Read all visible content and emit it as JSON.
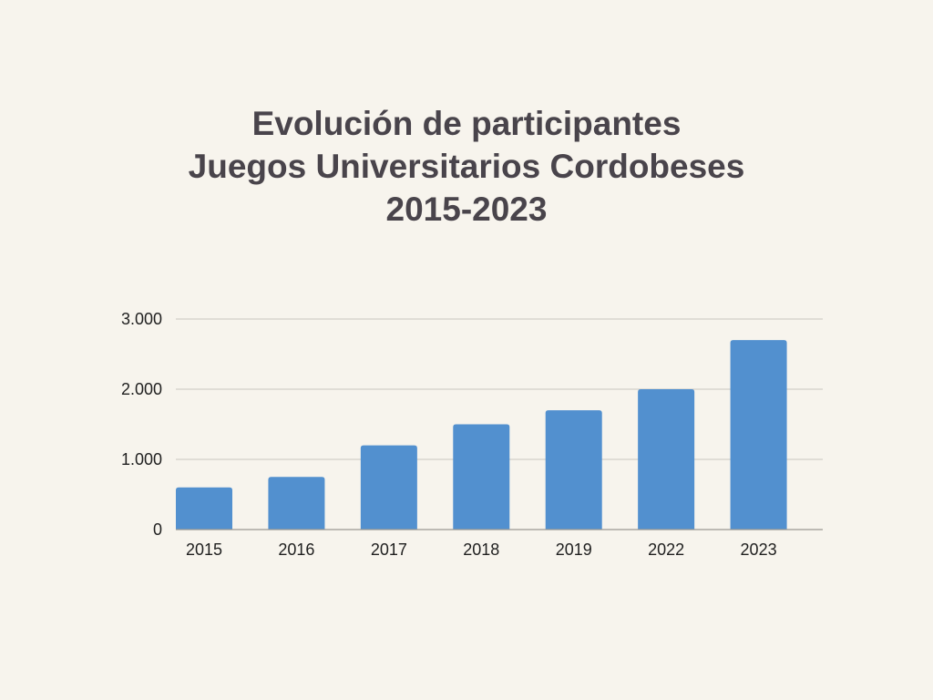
{
  "chart_data": {
    "type": "bar",
    "title_lines": [
      "Evolución de participantes",
      "Juegos Universitarios Cordobeses",
      "2015-2023"
    ],
    "categories": [
      "2015",
      "2016",
      "2017",
      "2018",
      "2019",
      "2022",
      "2023"
    ],
    "values": [
      600,
      750,
      1200,
      1500,
      1700,
      2000,
      2700
    ],
    "y_ticks": [
      {
        "value": 0,
        "label": "0"
      },
      {
        "value": 1000,
        "label": "1.000"
      },
      {
        "value": 2000,
        "label": "2.000"
      },
      {
        "value": 3000,
        "label": "3.000"
      }
    ],
    "ylim": [
      0,
      3000
    ],
    "xlabel": "",
    "ylabel": "",
    "grid": true,
    "legend": false,
    "colors": {
      "bar": "#5290cf",
      "grid": "#c9c6c0",
      "baseline": "#9a9893",
      "title": "#49444b",
      "text": "#1f1f1f",
      "background": "#f7f4ed"
    }
  }
}
